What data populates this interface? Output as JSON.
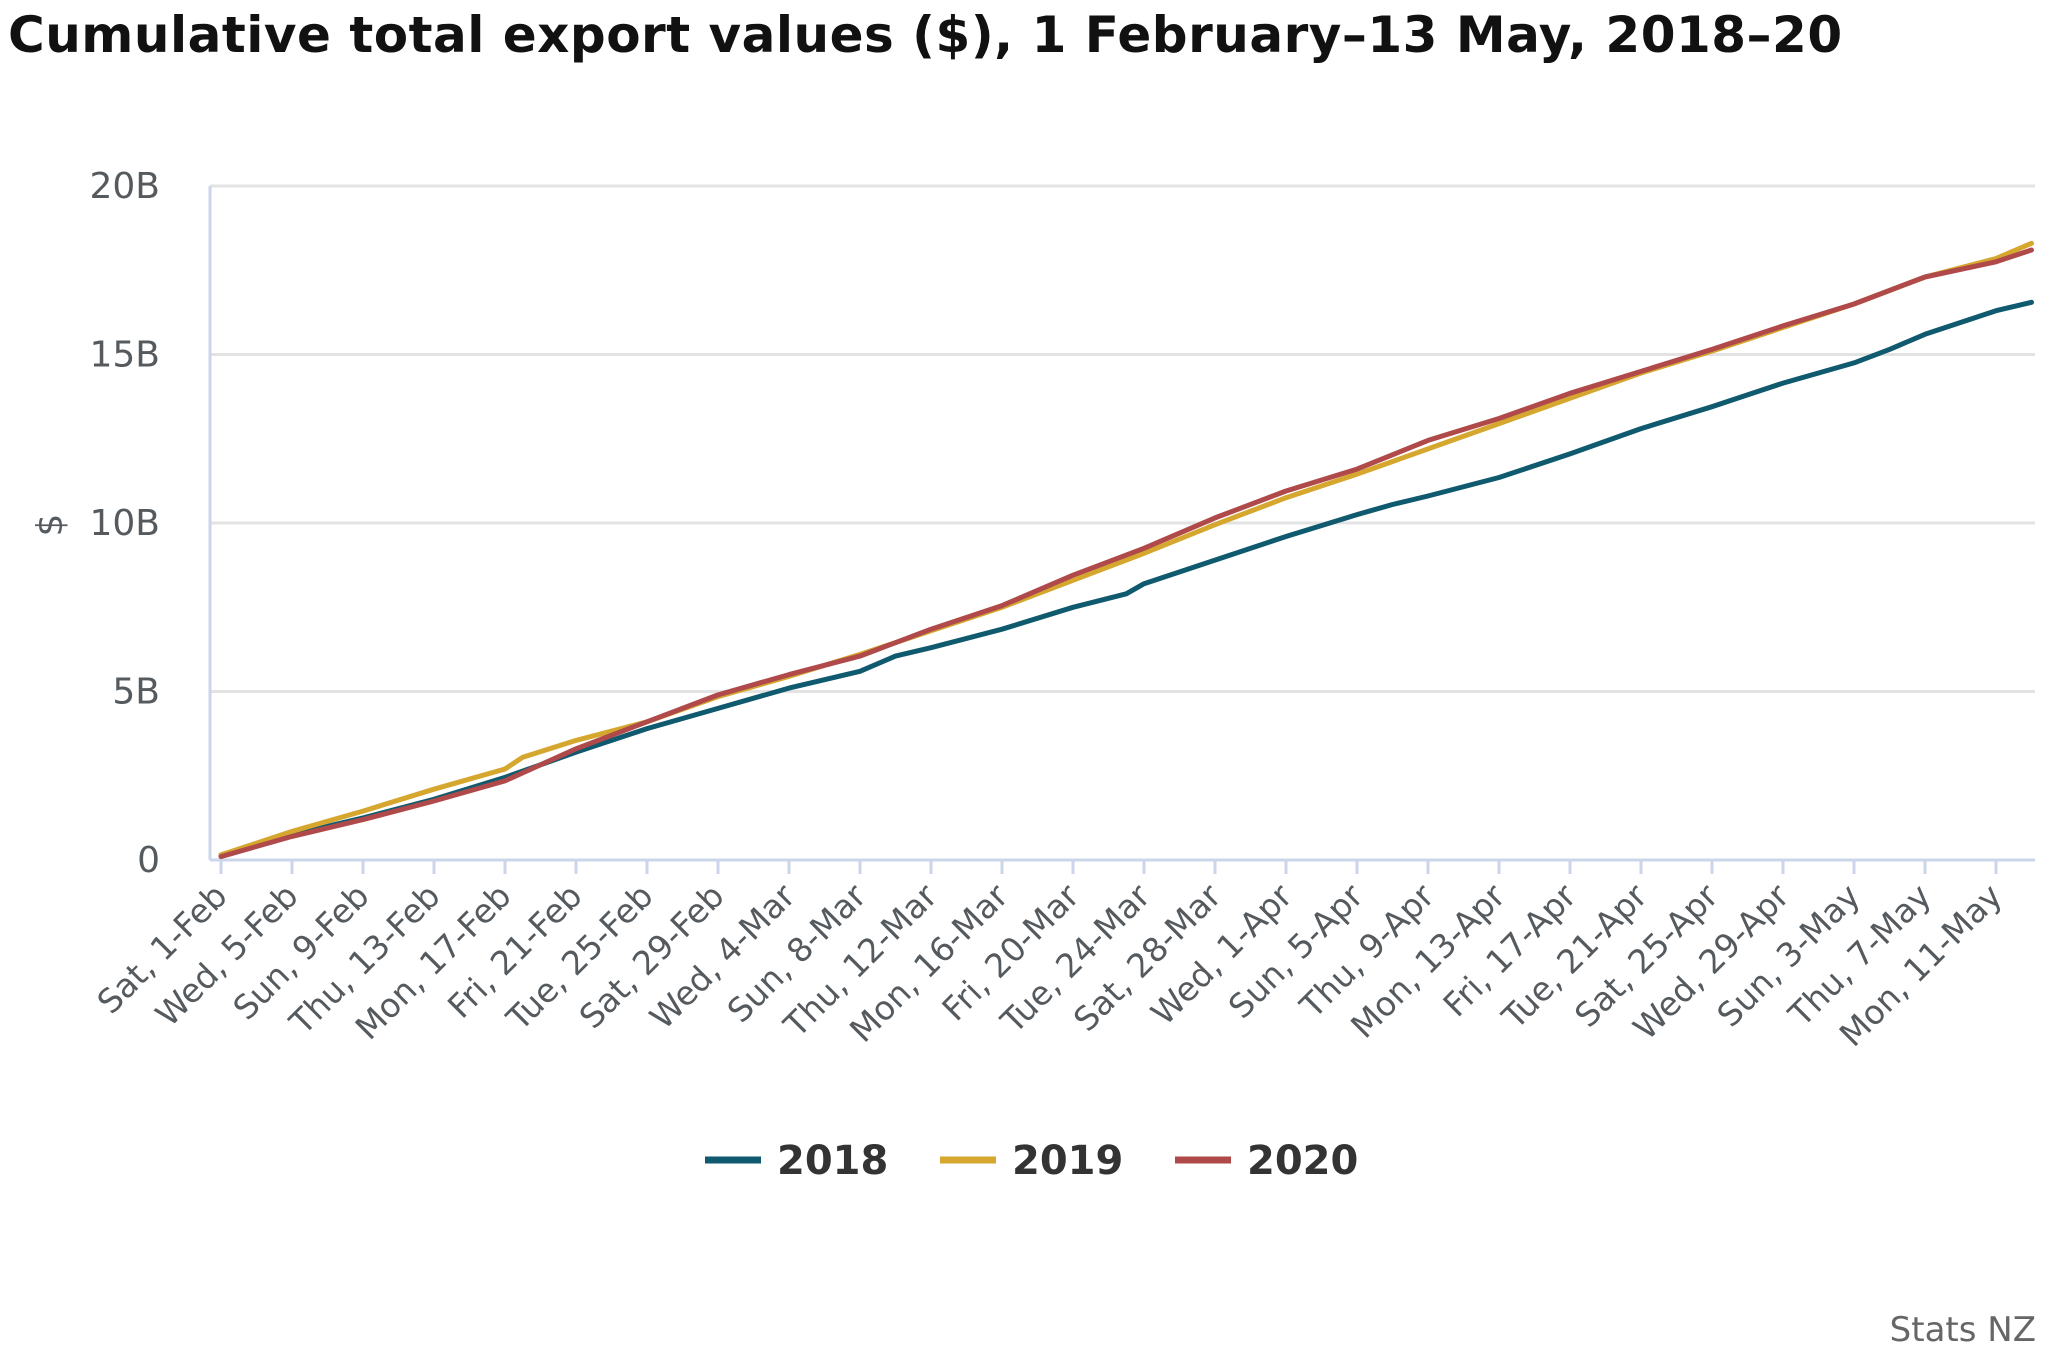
{
  "title": "Cumulative total export values ($), 1 February–13 May, 2018–20",
  "credit": "Stats NZ",
  "colors": {
    "2018": "#0f5a6e",
    "2019": "#d6a72e",
    "2020": "#b04a4a",
    "grid": "#e3e3e3",
    "axis": "#ccd6eb"
  },
  "chart_data": {
    "type": "line",
    "title": "Cumulative total export values ($), 1 February–13 May, 2018–20",
    "ylabel": "$",
    "xlabel": "",
    "ylim": [
      0,
      20000000000
    ],
    "yticks": [
      {
        "value": 0,
        "label": "0"
      },
      {
        "value": 5000000000,
        "label": "5B"
      },
      {
        "value": 10000000000,
        "label": "10B"
      },
      {
        "value": 15000000000,
        "label": "15B"
      },
      {
        "value": 20000000000,
        "label": "20B"
      }
    ],
    "grid": true,
    "legend": "bottom-center",
    "x_start": "Sat, 1-Feb",
    "x_end": "Wed, 13-May",
    "xticks": [
      {
        "day": 0,
        "label": "Sat, 1-Feb"
      },
      {
        "day": 4,
        "label": "Wed, 5-Feb"
      },
      {
        "day": 8,
        "label": "Sun, 9-Feb"
      },
      {
        "day": 12,
        "label": "Thu, 13-Feb"
      },
      {
        "day": 16,
        "label": "Mon, 17-Feb"
      },
      {
        "day": 20,
        "label": "Fri, 21-Feb"
      },
      {
        "day": 24,
        "label": "Tue, 25-Feb"
      },
      {
        "day": 28,
        "label": "Sat, 29-Feb"
      },
      {
        "day": 32,
        "label": "Wed, 4-Mar"
      },
      {
        "day": 36,
        "label": "Sun, 8-Mar"
      },
      {
        "day": 40,
        "label": "Thu, 12-Mar"
      },
      {
        "day": 44,
        "label": "Mon, 16-Mar"
      },
      {
        "day": 48,
        "label": "Fri, 20-Mar"
      },
      {
        "day": 52,
        "label": "Tue, 24-Mar"
      },
      {
        "day": 56,
        "label": "Sat, 28-Mar"
      },
      {
        "day": 60,
        "label": "Wed, 1-Apr"
      },
      {
        "day": 64,
        "label": "Sun, 5-Apr"
      },
      {
        "day": 68,
        "label": "Thu, 9-Apr"
      },
      {
        "day": 72,
        "label": "Mon, 13-Apr"
      },
      {
        "day": 76,
        "label": "Fri, 17-Apr"
      },
      {
        "day": 80,
        "label": "Tue, 21-Apr"
      },
      {
        "day": 84,
        "label": "Sat, 25-Apr"
      },
      {
        "day": 88,
        "label": "Wed, 29-Apr"
      },
      {
        "day": 92,
        "label": "Sun, 3-May"
      },
      {
        "day": 96,
        "label": "Thu, 7-May"
      },
      {
        "day": 100,
        "label": "Mon, 11-May"
      }
    ],
    "series": [
      {
        "name": "2018",
        "color": "#0f5a6e",
        "points": [
          [
            0,
            150000000.0
          ],
          [
            4,
            750000000.0
          ],
          [
            8,
            1250000000.0
          ],
          [
            12,
            1800000000.0
          ],
          [
            16,
            2450000000.0
          ],
          [
            20,
            3200000000.0
          ],
          [
            24,
            3900000000.0
          ],
          [
            28,
            4500000000.0
          ],
          [
            32,
            5100000000.0
          ],
          [
            36,
            5600000000.0
          ],
          [
            38,
            6050000000.0
          ],
          [
            40,
            6300000000.0
          ],
          [
            44,
            6850000000.0
          ],
          [
            48,
            7500000000.0
          ],
          [
            51,
            7900000000.0
          ],
          [
            52,
            8200000000.0
          ],
          [
            56,
            8900000000.0
          ],
          [
            60,
            9600000000.0
          ],
          [
            64,
            10250000000.0
          ],
          [
            66,
            10550000000.0
          ],
          [
            68,
            10800000000.0
          ],
          [
            72,
            11350000000.0
          ],
          [
            76,
            12050000000.0
          ],
          [
            80,
            12800000000.0
          ],
          [
            84,
            13450000000.0
          ],
          [
            86,
            13800000000.0
          ],
          [
            88,
            14150000000.0
          ],
          [
            92,
            14750000000.0
          ],
          [
            94,
            15150000000.0
          ],
          [
            96,
            15600000000.0
          ],
          [
            100,
            16300000000.0
          ],
          [
            102,
            16550000000.0
          ]
        ]
      },
      {
        "name": "2019",
        "color": "#d6a72e",
        "points": [
          [
            0,
            150000000.0
          ],
          [
            4,
            850000000.0
          ],
          [
            8,
            1450000000.0
          ],
          [
            12,
            2100000000.0
          ],
          [
            16,
            2700000000.0
          ],
          [
            17,
            3050000000.0
          ],
          [
            20,
            3550000000.0
          ],
          [
            24,
            4100000000.0
          ],
          [
            28,
            4850000000.0
          ],
          [
            32,
            5450000000.0
          ],
          [
            36,
            6100000000.0
          ],
          [
            40,
            6800000000.0
          ],
          [
            44,
            7500000000.0
          ],
          [
            48,
            8300000000.0
          ],
          [
            52,
            9100000000.0
          ],
          [
            56,
            9950000000.0
          ],
          [
            60,
            10750000000.0
          ],
          [
            64,
            11450000000.0
          ],
          [
            68,
            12200000000.0
          ],
          [
            72,
            12950000000.0
          ],
          [
            76,
            13700000000.0
          ],
          [
            80,
            14450000000.0
          ],
          [
            84,
            15100000000.0
          ],
          [
            88,
            15800000000.0
          ],
          [
            92,
            16500000000.0
          ],
          [
            96,
            17300000000.0
          ],
          [
            100,
            17850000000.0
          ],
          [
            102,
            18300000000.0
          ]
        ]
      },
      {
        "name": "2020",
        "color": "#b04a4a",
        "points": [
          [
            0,
            100000000.0
          ],
          [
            4,
            700000000.0
          ],
          [
            8,
            1200000000.0
          ],
          [
            12,
            1750000000.0
          ],
          [
            16,
            2350000000.0
          ],
          [
            20,
            3300000000.0
          ],
          [
            24,
            4100000000.0
          ],
          [
            28,
            4900000000.0
          ],
          [
            32,
            5500000000.0
          ],
          [
            36,
            6050000000.0
          ],
          [
            40,
            6850000000.0
          ],
          [
            44,
            7550000000.0
          ],
          [
            48,
            8450000000.0
          ],
          [
            52,
            9250000000.0
          ],
          [
            56,
            10150000000.0
          ],
          [
            60,
            10950000000.0
          ],
          [
            64,
            11600000000.0
          ],
          [
            68,
            12450000000.0
          ],
          [
            72,
            13100000000.0
          ],
          [
            76,
            13850000000.0
          ],
          [
            80,
            14500000000.0
          ],
          [
            84,
            15150000000.0
          ],
          [
            88,
            15850000000.0
          ],
          [
            92,
            16500000000.0
          ],
          [
            96,
            17300000000.0
          ],
          [
            100,
            17750000000.0
          ],
          [
            102,
            18100000000.0
          ]
        ]
      }
    ]
  }
}
